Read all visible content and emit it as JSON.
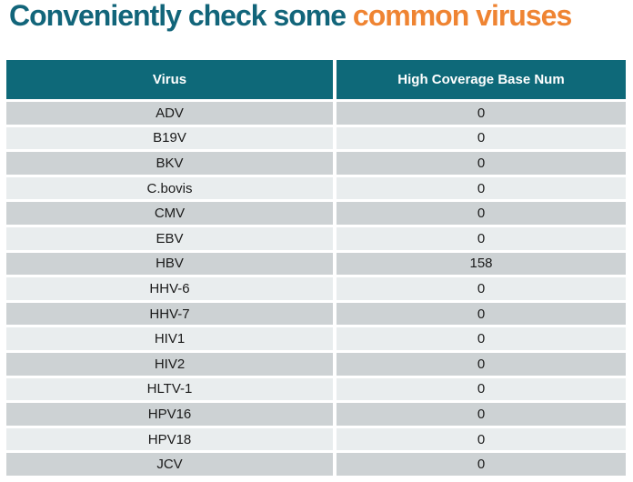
{
  "title": {
    "part1": "Conveniently check some",
    "part2": "common viruses"
  },
  "colors": {
    "title_teal": "#12657a",
    "title_orange": "#ef8432",
    "header_bg": "#0e6979",
    "row_dark": "#cdd2d4",
    "row_light": "#e9edee"
  },
  "table": {
    "columns": [
      "Virus",
      "High Coverage Base Num"
    ],
    "rows": [
      {
        "virus": "ADV",
        "value": "0"
      },
      {
        "virus": "B19V",
        "value": "0"
      },
      {
        "virus": "BKV",
        "value": "0"
      },
      {
        "virus": "C.bovis",
        "value": "0"
      },
      {
        "virus": "CMV",
        "value": "0"
      },
      {
        "virus": "EBV",
        "value": "0"
      },
      {
        "virus": "HBV",
        "value": "158"
      },
      {
        "virus": "HHV-6",
        "value": "0"
      },
      {
        "virus": "HHV-7",
        "value": "0"
      },
      {
        "virus": "HIV1",
        "value": "0"
      },
      {
        "virus": "HIV2",
        "value": "0"
      },
      {
        "virus": "HLTV-1",
        "value": "0"
      },
      {
        "virus": "HPV16",
        "value": "0"
      },
      {
        "virus": "HPV18",
        "value": "0"
      },
      {
        "virus": "JCV",
        "value": "0"
      }
    ]
  }
}
